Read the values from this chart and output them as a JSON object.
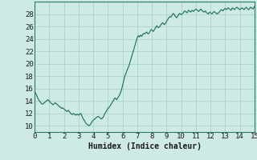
{
  "title": "",
  "xlabel": "Humidex (Indice chaleur)",
  "ylabel": "",
  "xlim": [
    0,
    15
  ],
  "ylim": [
    9,
    30
  ],
  "yticks": [
    10,
    12,
    14,
    16,
    18,
    20,
    22,
    24,
    26,
    28
  ],
  "xticks": [
    0,
    1,
    2,
    3,
    4,
    5,
    6,
    7,
    8,
    9,
    10,
    11,
    12,
    13,
    14,
    15
  ],
  "bg_color": "#ceeae4",
  "line_color": "#1a6b5a",
  "grid_color": "#add5ce",
  "x": [
    0.0,
    0.05,
    0.1,
    0.15,
    0.2,
    0.25,
    0.3,
    0.35,
    0.4,
    0.45,
    0.5,
    0.55,
    0.6,
    0.65,
    0.7,
    0.75,
    0.8,
    0.85,
    0.9,
    0.95,
    1.0,
    1.05,
    1.1,
    1.15,
    1.2,
    1.25,
    1.3,
    1.35,
    1.4,
    1.45,
    1.5,
    1.55,
    1.6,
    1.65,
    1.7,
    1.75,
    1.8,
    1.85,
    1.9,
    1.95,
    2.0,
    2.05,
    2.1,
    2.15,
    2.2,
    2.25,
    2.3,
    2.35,
    2.4,
    2.45,
    2.5,
    2.55,
    2.6,
    2.65,
    2.7,
    2.75,
    2.8,
    2.85,
    2.9,
    2.95,
    3.0,
    3.05,
    3.1,
    3.15,
    3.2,
    3.25,
    3.3,
    3.35,
    3.4,
    3.45,
    3.5,
    3.55,
    3.6,
    3.65,
    3.7,
    3.75,
    3.8,
    3.85,
    3.9,
    3.95,
    4.0,
    4.05,
    4.1,
    4.15,
    4.2,
    4.25,
    4.3,
    4.35,
    4.4,
    4.45,
    4.5,
    4.55,
    4.6,
    4.65,
    4.7,
    4.75,
    4.8,
    4.85,
    4.9,
    4.95,
    5.0,
    5.05,
    5.1,
    5.15,
    5.2,
    5.25,
    5.3,
    5.35,
    5.4,
    5.45,
    5.5,
    5.55,
    5.6,
    5.65,
    5.7,
    5.75,
    5.8,
    5.85,
    5.9,
    5.95,
    6.0,
    6.05,
    6.1,
    6.15,
    6.2,
    6.25,
    6.3,
    6.35,
    6.4,
    6.45,
    6.5,
    6.55,
    6.6,
    6.65,
    6.7,
    6.75,
    6.8,
    6.85,
    6.9,
    6.95,
    7.0,
    7.05,
    7.1,
    7.15,
    7.2,
    7.25,
    7.3,
    7.35,
    7.4,
    7.45,
    7.5,
    7.55,
    7.6,
    7.65,
    7.7,
    7.75,
    7.8,
    7.85,
    7.9,
    7.95,
    8.0,
    8.05,
    8.1,
    8.15,
    8.2,
    8.25,
    8.3,
    8.35,
    8.4,
    8.45,
    8.5,
    8.55,
    8.6,
    8.65,
    8.7,
    8.75,
    8.8,
    8.85,
    8.9,
    8.95,
    9.0,
    9.05,
    9.1,
    9.15,
    9.2,
    9.25,
    9.3,
    9.35,
    9.4,
    9.45,
    9.5,
    9.55,
    9.6,
    9.65,
    9.7,
    9.75,
    9.8,
    9.85,
    9.9,
    9.95,
    10.0,
    10.05,
    10.1,
    10.15,
    10.2,
    10.25,
    10.3,
    10.35,
    10.4,
    10.45,
    10.5,
    10.55,
    10.6,
    10.65,
    10.7,
    10.75,
    10.8,
    10.85,
    10.9,
    10.95,
    11.0,
    11.05,
    11.1,
    11.15,
    11.2,
    11.25,
    11.3,
    11.35,
    11.4,
    11.45,
    11.5,
    11.55,
    11.6,
    11.65,
    11.7,
    11.75,
    11.8,
    11.85,
    11.9,
    11.95,
    12.0,
    12.05,
    12.1,
    12.15,
    12.2,
    12.25,
    12.3,
    12.35,
    12.4,
    12.45,
    12.5,
    12.55,
    12.6,
    12.65,
    12.7,
    12.75,
    12.8,
    12.85,
    12.9,
    12.95,
    13.0,
    13.05,
    13.1,
    13.15,
    13.2,
    13.25,
    13.3,
    13.35,
    13.4,
    13.45,
    13.5,
    13.55,
    13.6,
    13.65,
    13.7,
    13.75,
    13.8,
    13.85,
    13.9,
    13.95,
    14.0,
    14.05,
    14.1,
    14.15,
    14.2,
    14.25,
    14.3,
    14.35,
    14.4,
    14.45,
    14.5,
    14.55,
    14.6,
    14.65,
    14.7,
    14.75,
    14.8,
    14.85,
    14.9,
    14.95,
    15.0
  ],
  "y": [
    15.5,
    15.3,
    15.1,
    14.8,
    14.5,
    14.3,
    14.1,
    13.9,
    13.8,
    13.6,
    13.5,
    13.5,
    13.6,
    13.7,
    13.8,
    13.9,
    14.0,
    14.1,
    14.2,
    14.1,
    14.0,
    13.8,
    13.7,
    13.6,
    13.5,
    13.4,
    13.5,
    13.6,
    13.7,
    13.6,
    13.5,
    13.4,
    13.3,
    13.2,
    13.1,
    13.0,
    12.9,
    12.8,
    12.9,
    12.8,
    12.7,
    12.6,
    12.5,
    12.4,
    12.3,
    12.4,
    12.5,
    12.3,
    12.2,
    12.0,
    11.9,
    11.8,
    11.9,
    12.0,
    11.9,
    11.8,
    11.7,
    11.8,
    11.9,
    11.8,
    11.7,
    11.8,
    11.9,
    12.0,
    11.7,
    11.4,
    11.2,
    11.0,
    10.8,
    10.6,
    10.4,
    10.3,
    10.2,
    10.1,
    10.0,
    10.1,
    10.2,
    10.4,
    10.6,
    10.8,
    10.9,
    11.0,
    11.1,
    11.2,
    11.3,
    11.4,
    11.5,
    11.5,
    11.4,
    11.3,
    11.2,
    11.1,
    11.2,
    11.3,
    11.5,
    11.8,
    12.0,
    12.2,
    12.4,
    12.6,
    12.8,
    12.9,
    13.0,
    13.2,
    13.4,
    13.6,
    13.8,
    14.0,
    14.2,
    14.4,
    14.5,
    14.3,
    14.2,
    14.4,
    14.6,
    14.8,
    15.0,
    15.3,
    15.6,
    16.0,
    16.5,
    17.0,
    17.5,
    18.0,
    18.3,
    18.6,
    18.9,
    19.2,
    19.5,
    19.8,
    20.2,
    20.6,
    21.0,
    21.4,
    21.8,
    22.2,
    22.6,
    23.0,
    23.4,
    23.8,
    24.2,
    24.4,
    24.5,
    24.3,
    24.5,
    24.6,
    24.4,
    24.6,
    24.8,
    24.9,
    24.8,
    24.9,
    25.0,
    25.1,
    24.9,
    24.8,
    24.9,
    25.1,
    25.3,
    25.5,
    25.4,
    25.3,
    25.2,
    25.4,
    25.6,
    25.8,
    26.0,
    26.1,
    25.9,
    25.8,
    25.9,
    26.0,
    26.2,
    26.4,
    26.5,
    26.6,
    26.4,
    26.3,
    26.4,
    26.6,
    26.8,
    27.0,
    27.2,
    27.4,
    27.5,
    27.6,
    27.5,
    27.7,
    27.9,
    28.1,
    28.0,
    27.8,
    27.6,
    27.5,
    27.4,
    27.6,
    27.8,
    28.0,
    28.1,
    28.0,
    27.9,
    28.0,
    28.1,
    28.2,
    28.4,
    28.5,
    28.4,
    28.3,
    28.2,
    28.4,
    28.6,
    28.5,
    28.4,
    28.3,
    28.5,
    28.6,
    28.5,
    28.4,
    28.6,
    28.7,
    28.8,
    28.7,
    28.6,
    28.5,
    28.4,
    28.6,
    28.7,
    28.8,
    28.6,
    28.5,
    28.4,
    28.3,
    28.4,
    28.5,
    28.3,
    28.2,
    28.1,
    28.0,
    28.2,
    28.3,
    28.2,
    28.1,
    28.0,
    28.2,
    28.3,
    28.4,
    28.3,
    28.2,
    28.1,
    28.0,
    28.1,
    28.2,
    28.3,
    28.5,
    28.6,
    28.7,
    28.6,
    28.5,
    28.7,
    28.8,
    28.9,
    28.8,
    28.7,
    28.9,
    29.0,
    28.9,
    28.8,
    28.7,
    28.6,
    28.8,
    29.0,
    28.9,
    28.8,
    28.7,
    28.9,
    29.0,
    29.1,
    29.0,
    28.9,
    28.8,
    28.7,
    28.8,
    28.9,
    29.0,
    28.9,
    28.8,
    28.7,
    28.9,
    29.0,
    29.1,
    28.9,
    28.8,
    28.7,
    28.8,
    29.0,
    29.1,
    29.0,
    28.9,
    28.8,
    29.0,
    29.2
  ]
}
